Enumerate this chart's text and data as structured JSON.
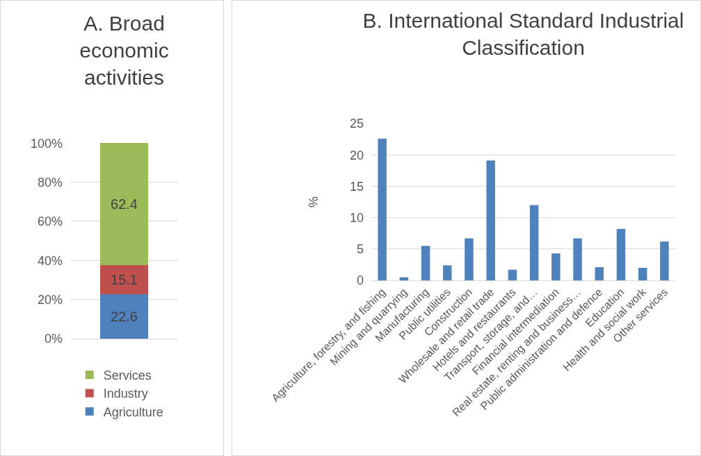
{
  "chart_data": [
    {
      "type": "bar",
      "title": "A. Broad economic activities",
      "stacked": true,
      "categories": [
        null
      ],
      "data_labels": true,
      "legend": "bottom",
      "grid": "y",
      "ylim": [
        0,
        100.1
      ],
      "yticks": [
        {
          "value": 0,
          "label": "0%"
        },
        {
          "value": 20,
          "label": "20%"
        },
        {
          "value": 40,
          "label": "40%"
        },
        {
          "value": 60,
          "label": "60%"
        },
        {
          "value": 80,
          "label": "80%"
        },
        {
          "value": 100,
          "label": "100%"
        }
      ],
      "series": [
        {
          "name": "Agriculture",
          "color": "#4f81bd",
          "values": [
            22.6
          ]
        },
        {
          "name": "Industry",
          "color": "#c0504d",
          "values": [
            15.1
          ]
        },
        {
          "name": "Services",
          "color": "#9bbb59",
          "values": [
            62.4
          ]
        }
      ]
    },
    {
      "type": "bar",
      "title": "B. International Standard Industrial Classification",
      "ylabel": "%",
      "grid": "y",
      "ylim": [
        0,
        25
      ],
      "yticks": [
        0,
        5,
        10,
        15,
        20,
        25
      ],
      "categories": [
        "Agriculture, forestry, and fishing",
        "Mining and quarrying",
        "Manufacturing",
        "Public utilities",
        "Construction",
        "Wholesale and retail trade",
        "Hotels and restaurants",
        "Transport, storage, and…",
        "Financial intermediation",
        "Real estate, renting and business…",
        "Public administration and defence",
        "Education",
        "Health and social work",
        "Other services"
      ],
      "color": "#4f81bd",
      "values": [
        22.6,
        0.5,
        5.5,
        2.4,
        6.7,
        19.1,
        1.7,
        12.0,
        4.3,
        6.7,
        2.1,
        8.2,
        2.0,
        6.2
      ]
    }
  ]
}
